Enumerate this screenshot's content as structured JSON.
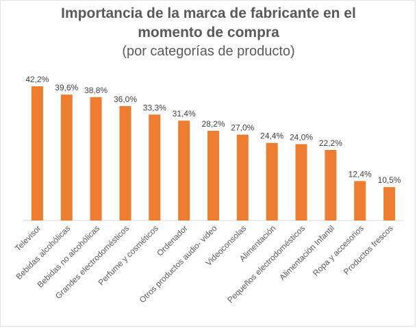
{
  "title": {
    "line1": "Importancia de la marca de fabricante en el",
    "line2": "momento de compra",
    "subtitle": "(por categorías de producto)"
  },
  "chart_data": {
    "type": "bar",
    "categories": [
      "Televisor",
      "Bebidas alcohólicas",
      "Bebidas no alcohólicas",
      "Grandes electrodomésticos",
      "Perfume y cosméticos",
      "Ordenador",
      "Otros productos audio- video",
      "Videoconsolas",
      "Alimentación",
      "Pequeños electrodomésticos",
      "Alimentación Infantil",
      "Ropa y accesorios",
      "Productos frescos"
    ],
    "values": [
      42.2,
      39.6,
      38.8,
      36.0,
      33.3,
      31.4,
      28.2,
      27.0,
      24.4,
      24.0,
      22.2,
      12.4,
      10.5
    ],
    "data_labels": [
      "42,2%",
      "39,6%",
      "38,8%",
      "36,0%",
      "33,3%",
      "31,4%",
      "28,2%",
      "27,0%",
      "24,4%",
      "24,0%",
      "22,2%",
      "12,4%",
      "10,5%"
    ],
    "ylim": [
      0,
      42.2
    ],
    "bar_color": "#ED7D31",
    "grid": false,
    "legend": "none"
  }
}
